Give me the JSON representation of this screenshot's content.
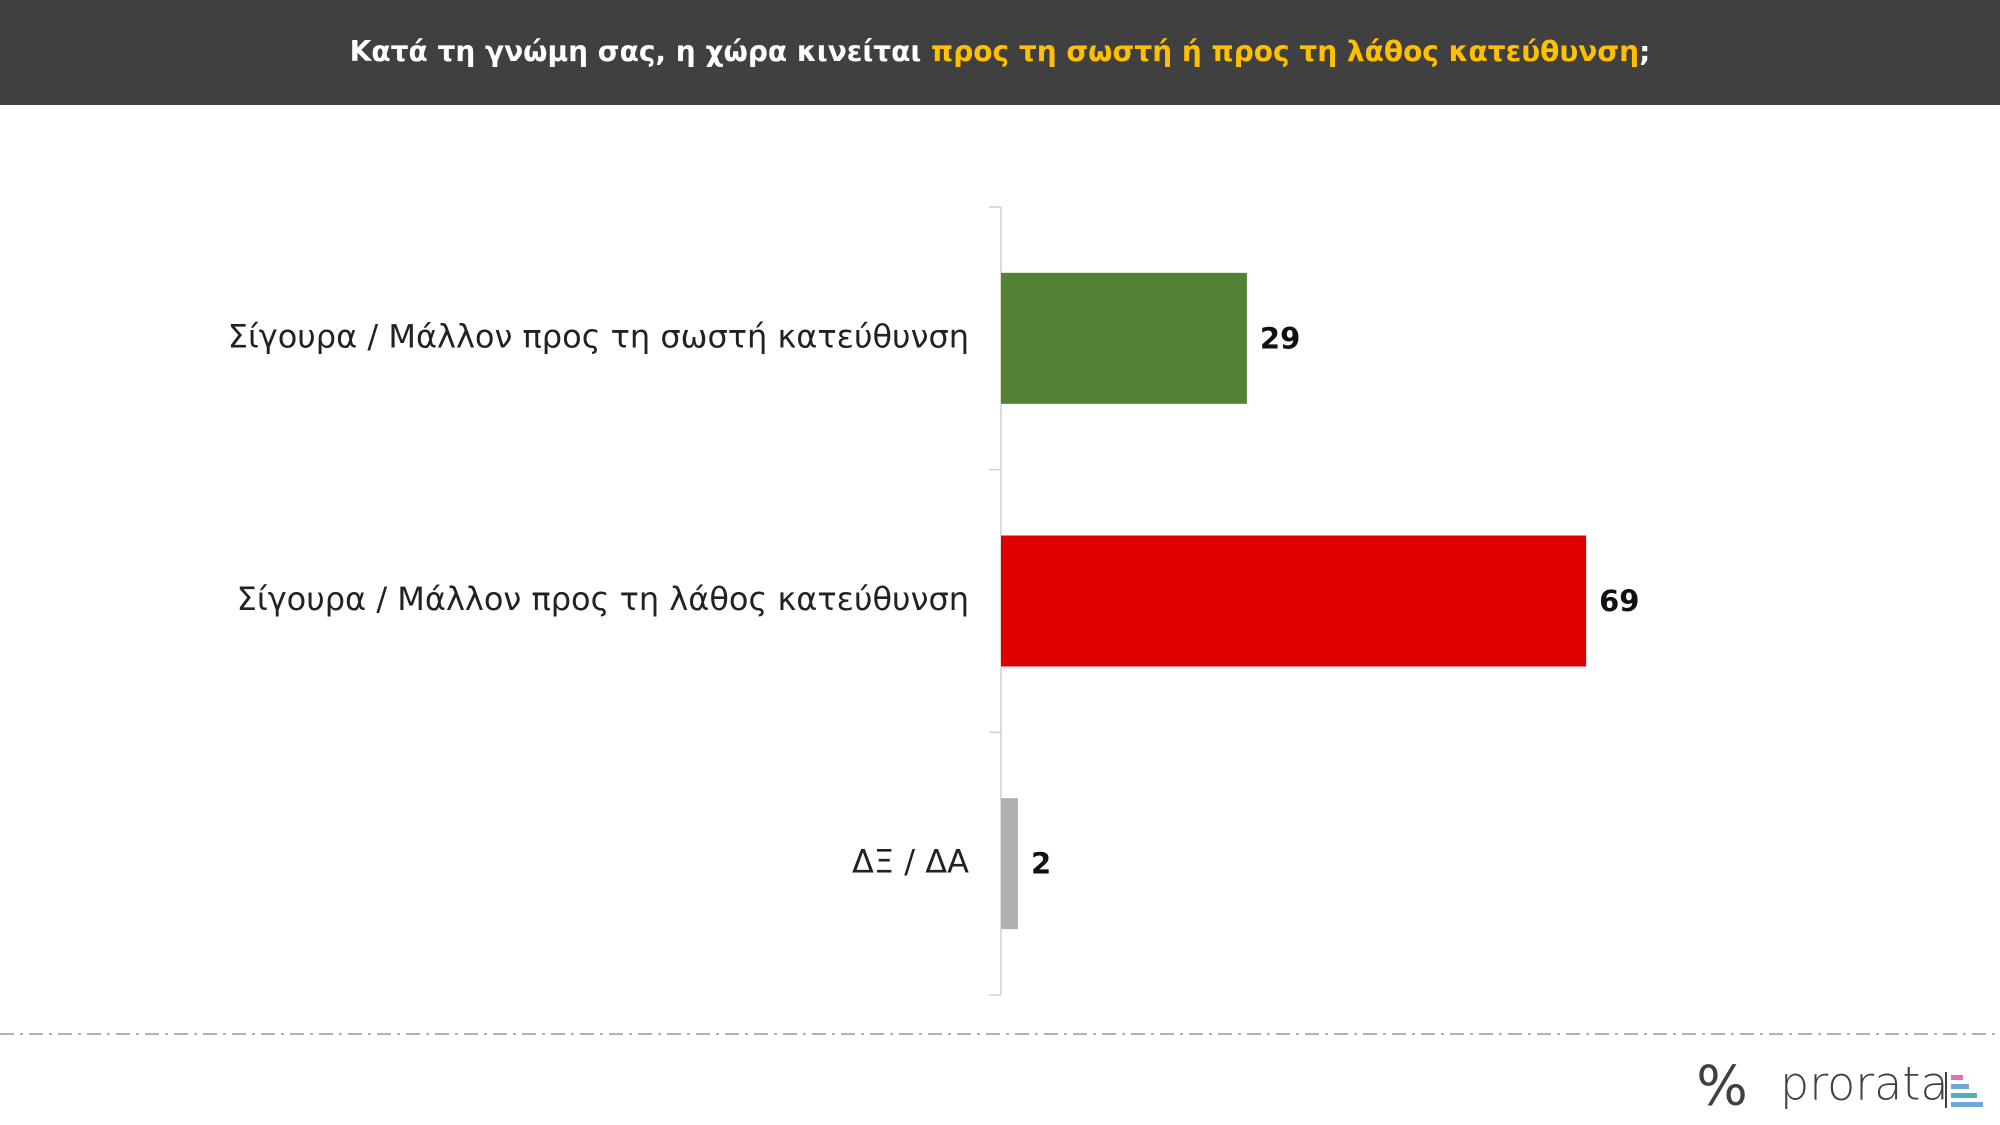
{
  "chart_data": {
    "type": "hbar",
    "title_parts": [
      {
        "text": "Κατά τη γνώμη σας, η χώρα κινείται ",
        "color": "#ffffff"
      },
      {
        "text": "προς τη σωστή ή προς τη λάθος κατεύθυνση",
        "color": "#ffc000"
      },
      {
        "text": ";",
        "color": "#ffffff"
      }
    ],
    "categories": [
      "Σίγουρα / Μάλλον προς τη σωστή κατεύθυνση",
      "Σίγουρα / Μάλλον προς τη λάθος κατεύθυνση",
      "ΔΞ / ΔΑ"
    ],
    "values": [
      29,
      69,
      2
    ],
    "colors": [
      "#548235",
      "#e00000",
      "#b0b0b0"
    ]
  },
  "logo": {
    "symbol": "%",
    "text": "prorata"
  }
}
